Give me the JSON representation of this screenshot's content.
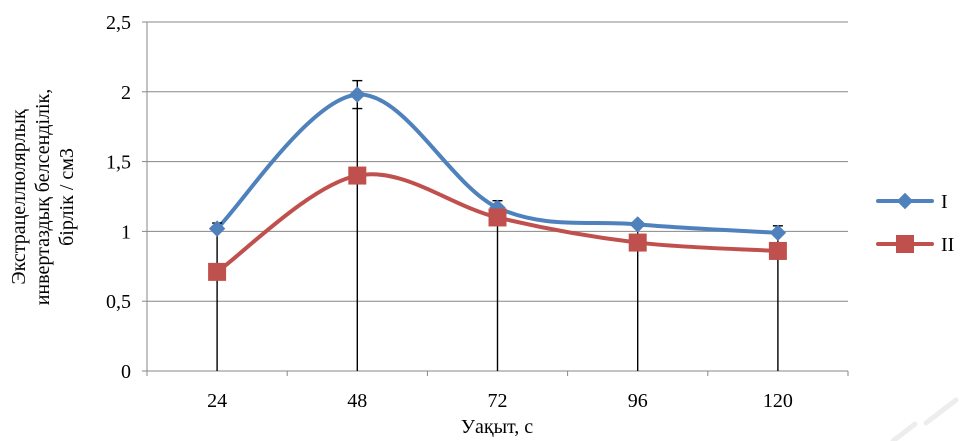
{
  "chart_data": {
    "type": "line",
    "smooth": true,
    "categories": [
      "24",
      "48",
      "72",
      "96",
      "120"
    ],
    "series": [
      {
        "name": "I",
        "values": [
          1.02,
          1.98,
          1.17,
          1.05,
          0.99
        ],
        "color": "#4f81bd",
        "marker": "diamond"
      },
      {
        "name": "II",
        "values": [
          0.71,
          1.4,
          1.1,
          0.92,
          0.86
        ],
        "color": "#c0504d",
        "marker": "square"
      }
    ],
    "error_bars": {
      "low": [
        0,
        0,
        0,
        0,
        0
      ],
      "high": [
        1.06,
        2.08,
        1.22,
        1.07,
        1.04
      ],
      "caps": [
        [
          1.06
        ],
        [
          1.88,
          2.08
        ],
        [
          1.22
        ],
        [
          1.07
        ],
        [
          1.04
        ]
      ],
      "color": "#000000"
    },
    "xlabel": "Уақыт, с",
    "ylabel": [
      "Экстрацеллюлярлық",
      "инвертаздық белсенділік,",
      "бірлік / см3"
    ],
    "ylim": [
      0,
      2.5
    ],
    "yticks": [
      0,
      0.5,
      1,
      1.5,
      2,
      2.5
    ],
    "ytick_labels": [
      "0",
      "0,5",
      "1",
      "1,5",
      "2",
      "2,5"
    ],
    "grid": true,
    "legend_position": "right"
  }
}
